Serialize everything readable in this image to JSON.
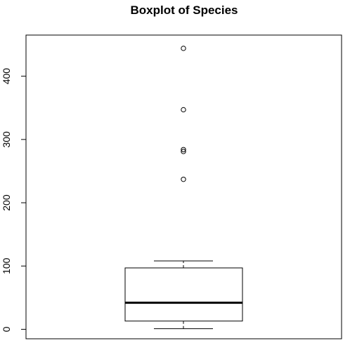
{
  "chart_data": {
    "type": "boxplot",
    "title": "Boxplot of Species",
    "xlabel": "",
    "ylabel": "",
    "ylim": [
      -15,
      465
    ],
    "yticks": [
      0,
      100,
      200,
      300,
      400
    ],
    "box": {
      "min": 1,
      "q1": 13,
      "median": 42,
      "q3": 97,
      "max": 108
    },
    "outliers": [
      237,
      281,
      284,
      347,
      444
    ]
  }
}
